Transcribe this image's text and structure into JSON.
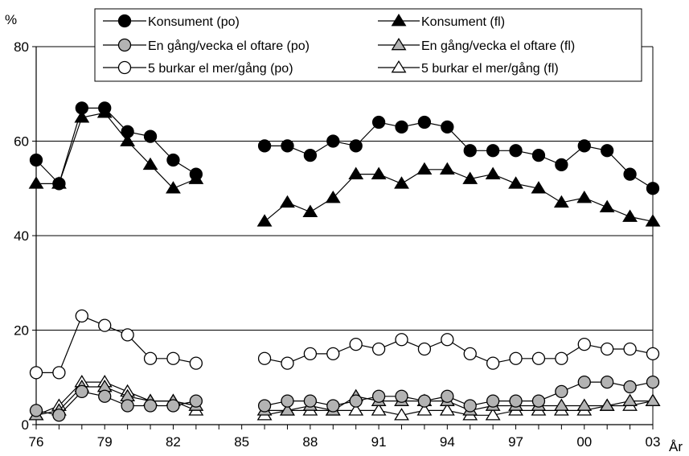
{
  "chart_data": {
    "type": "line",
    "ylabel": "%",
    "xlabel": "År",
    "ylim": [
      0,
      80
    ],
    "yticks": [
      0,
      20,
      40,
      60,
      80
    ],
    "xlim": [
      1976,
      2003
    ],
    "xticks": [
      {
        "value": 1976,
        "label": "76"
      },
      {
        "value": 1979,
        "label": "79"
      },
      {
        "value": 1982,
        "label": "82"
      },
      {
        "value": 1985,
        "label": "85"
      },
      {
        "value": 1988,
        "label": "88"
      },
      {
        "value": 1991,
        "label": "91"
      },
      {
        "value": 1994,
        "label": "94"
      },
      {
        "value": 1997,
        "label": "97"
      },
      {
        "value": 2000,
        "label": "00"
      },
      {
        "value": 2003,
        "label": "03"
      }
    ],
    "grid": true,
    "legend_position": "top",
    "series": [
      {
        "name": "Konsument (po)",
        "marker": "circle",
        "fill": "#000000",
        "segments": [
          [
            [
              1976,
              56
            ],
            [
              1977,
              51
            ],
            [
              1978,
              67
            ],
            [
              1979,
              67
            ],
            [
              1980,
              62
            ],
            [
              1981,
              61
            ],
            [
              1982,
              56
            ],
            [
              1983,
              53
            ]
          ],
          [
            [
              1986,
              59
            ],
            [
              1987,
              59
            ],
            [
              1988,
              57
            ],
            [
              1989,
              60
            ],
            [
              1990,
              59
            ],
            [
              1991,
              64
            ],
            [
              1992,
              63
            ],
            [
              1993,
              64
            ],
            [
              1994,
              63
            ],
            [
              1995,
              58
            ],
            [
              1996,
              58
            ],
            [
              1997,
              58
            ],
            [
              1998,
              57
            ],
            [
              1999,
              55
            ],
            [
              2000,
              59
            ],
            [
              2001,
              58
            ],
            [
              2002,
              53
            ],
            [
              2003,
              50
            ]
          ]
        ]
      },
      {
        "name": "Konsument (fl)",
        "marker": "triangle",
        "fill": "#000000",
        "segments": [
          [
            [
              1976,
              51
            ],
            [
              1977,
              51
            ],
            [
              1978,
              65
            ],
            [
              1979,
              66
            ],
            [
              1980,
              60
            ],
            [
              1981,
              55
            ],
            [
              1982,
              50
            ],
            [
              1983,
              52
            ]
          ],
          [
            [
              1986,
              43
            ],
            [
              1987,
              47
            ],
            [
              1988,
              45
            ],
            [
              1989,
              48
            ],
            [
              1990,
              53
            ],
            [
              1991,
              53
            ],
            [
              1992,
              51
            ],
            [
              1993,
              54
            ],
            [
              1994,
              54
            ],
            [
              1995,
              52
            ],
            [
              1996,
              53
            ],
            [
              1997,
              51
            ],
            [
              1998,
              50
            ],
            [
              1999,
              47
            ],
            [
              2000,
              48
            ],
            [
              2001,
              46
            ],
            [
              2002,
              44
            ],
            [
              2003,
              43
            ]
          ]
        ]
      },
      {
        "name": "En gång/vecka el oftare (po)",
        "marker": "circle",
        "fill": "#b3b3b3",
        "segments": [
          [
            [
              1976,
              3
            ],
            [
              1977,
              2
            ],
            [
              1978,
              7
            ],
            [
              1979,
              6
            ],
            [
              1980,
              4
            ],
            [
              1981,
              4
            ],
            [
              1982,
              4
            ],
            [
              1983,
              5
            ]
          ],
          [
            [
              1986,
              4
            ],
            [
              1987,
              5
            ],
            [
              1988,
              5
            ],
            [
              1989,
              4
            ],
            [
              1990,
              5
            ],
            [
              1991,
              6
            ],
            [
              1992,
              6
            ],
            [
              1993,
              5
            ],
            [
              1994,
              6
            ],
            [
              1995,
              4
            ],
            [
              1996,
              5
            ],
            [
              1997,
              5
            ],
            [
              1998,
              5
            ],
            [
              1999,
              7
            ],
            [
              2000,
              9
            ],
            [
              2001,
              9
            ],
            [
              2002,
              8
            ],
            [
              2003,
              9
            ]
          ]
        ]
      },
      {
        "name": "En gång/vecka el oftare (fl)",
        "marker": "triangle",
        "fill": "#b3b3b3",
        "segments": [
          [
            [
              1976,
              2
            ],
            [
              1977,
              3
            ],
            [
              1978,
              8
            ],
            [
              1979,
              8
            ],
            [
              1980,
              6
            ],
            [
              1981,
              5
            ],
            [
              1982,
              5
            ],
            [
              1983,
              4
            ]
          ],
          [
            [
              1986,
              3
            ],
            [
              1987,
              3
            ],
            [
              1988,
              4
            ],
            [
              1989,
              3
            ],
            [
              1990,
              6
            ],
            [
              1991,
              5
            ],
            [
              1992,
              5
            ],
            [
              1993,
              5
            ],
            [
              1994,
              5
            ],
            [
              1995,
              3
            ],
            [
              1996,
              4
            ],
            [
              1997,
              4
            ],
            [
              1998,
              4
            ],
            [
              1999,
              4
            ],
            [
              2000,
              4
            ],
            [
              2001,
              4
            ],
            [
              2002,
              5
            ],
            [
              2003,
              5
            ]
          ]
        ]
      },
      {
        "name": "5 burkar el mer/gång (po)",
        "marker": "circle",
        "fill": "#ffffff",
        "segments": [
          [
            [
              1976,
              11
            ],
            [
              1977,
              11
            ],
            [
              1978,
              23
            ],
            [
              1979,
              21
            ],
            [
              1980,
              19
            ],
            [
              1981,
              14
            ],
            [
              1982,
              14
            ],
            [
              1983,
              13
            ]
          ],
          [
            [
              1986,
              14
            ],
            [
              1987,
              13
            ],
            [
              1988,
              15
            ],
            [
              1989,
              15
            ],
            [
              1990,
              17
            ],
            [
              1991,
              16
            ],
            [
              1992,
              18
            ],
            [
              1993,
              16
            ],
            [
              1994,
              18
            ],
            [
              1995,
              15
            ],
            [
              1996,
              13
            ],
            [
              1997,
              14
            ],
            [
              1998,
              14
            ],
            [
              1999,
              14
            ],
            [
              2000,
              17
            ],
            [
              2001,
              16
            ],
            [
              2002,
              16
            ],
            [
              2003,
              15
            ]
          ]
        ]
      },
      {
        "name": "5 burkar el mer/gång (fl)",
        "marker": "triangle",
        "fill": "#ffffff",
        "segments": [
          [
            [
              1976,
              2
            ],
            [
              1977,
              4
            ],
            [
              1978,
              9
            ],
            [
              1979,
              9
            ],
            [
              1980,
              7
            ],
            [
              1981,
              5
            ],
            [
              1982,
              5
            ],
            [
              1983,
              3
            ]
          ],
          [
            [
              1986,
              2
            ],
            [
              1987,
              3
            ],
            [
              1988,
              3
            ],
            [
              1989,
              3
            ],
            [
              1990,
              3
            ],
            [
              1991,
              3
            ],
            [
              1992,
              2
            ],
            [
              1993,
              3
            ],
            [
              1994,
              3
            ],
            [
              1995,
              2
            ],
            [
              1996,
              2
            ],
            [
              1997,
              3
            ],
            [
              1998,
              3
            ],
            [
              1999,
              3
            ],
            [
              2000,
              3
            ],
            [
              2001,
              4
            ],
            [
              2002,
              4
            ],
            [
              2003,
              5
            ]
          ]
        ]
      }
    ]
  }
}
